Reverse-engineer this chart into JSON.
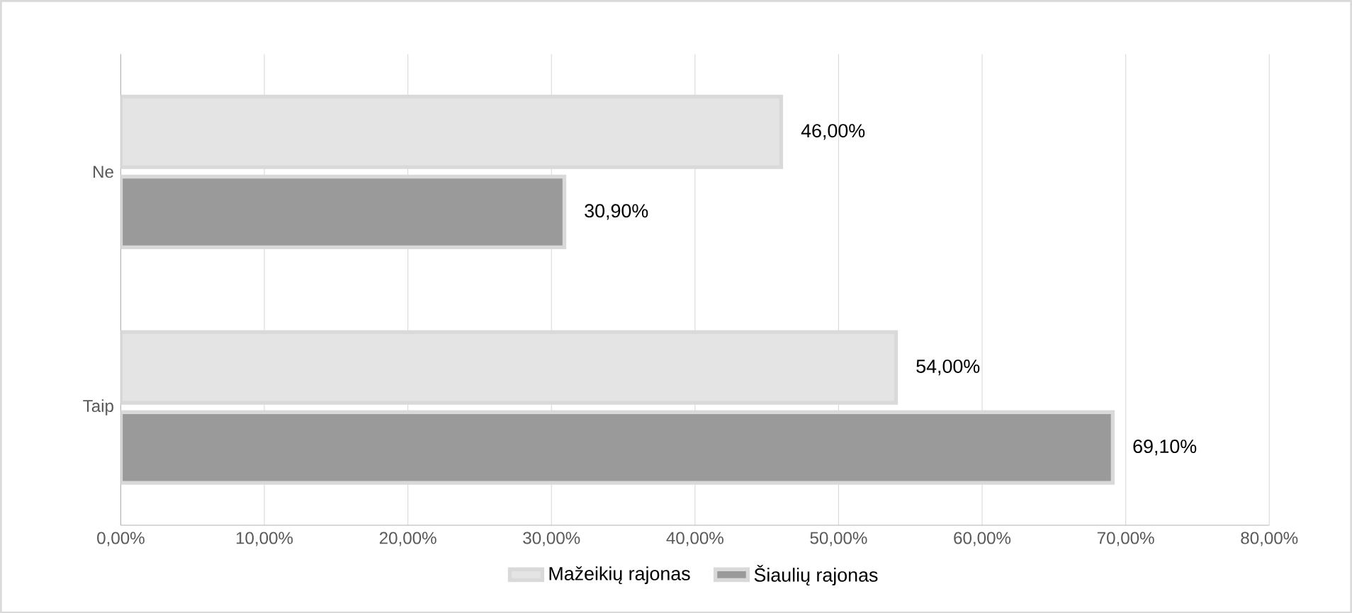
{
  "chart_data": {
    "type": "bar",
    "orientation": "horizontal",
    "categories": [
      "Ne",
      "Taip"
    ],
    "series": [
      {
        "name": "Mažeikių rajonas",
        "color": "#e4e4e4",
        "values": [
          46.0,
          54.0
        ],
        "value_labels": [
          "46,00%",
          "54,00%"
        ]
      },
      {
        "name": "Šiaulių rajonas",
        "color": "#9a9a9a",
        "values": [
          30.9,
          69.1
        ],
        "value_labels": [
          "30,90%",
          "69,10%"
        ]
      }
    ],
    "xlim": [
      0,
      80
    ],
    "xticks": [
      {
        "value": 0,
        "label": "0,00%"
      },
      {
        "value": 10,
        "label": "10,00%"
      },
      {
        "value": 20,
        "label": "20,00%"
      },
      {
        "value": 30,
        "label": "30,00%"
      },
      {
        "value": 40,
        "label": "40,00%"
      },
      {
        "value": 50,
        "label": "50,00%"
      },
      {
        "value": 60,
        "label": "60,00%"
      },
      {
        "value": 70,
        "label": "70,00%"
      },
      {
        "value": 80,
        "label": "80,00%"
      }
    ],
    "grid": "x",
    "legend": "bottom"
  }
}
